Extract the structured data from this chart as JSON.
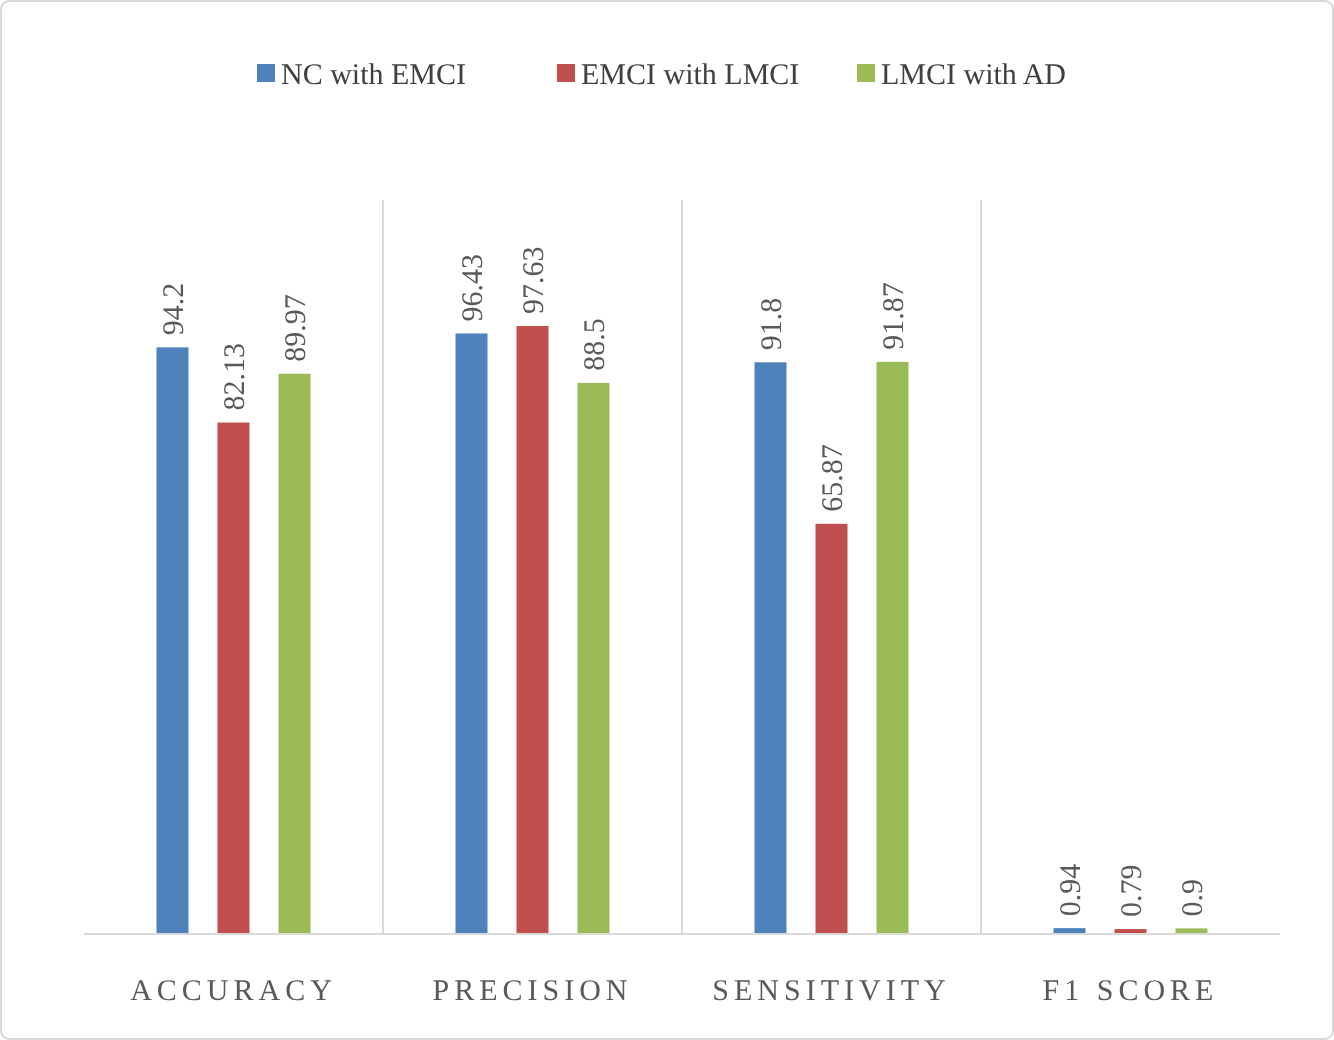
{
  "chart_data": {
    "type": "bar",
    "categories": [
      "ACCURACY",
      "PRECISION",
      "SENSITIVITY",
      "F1 SCORE"
    ],
    "series": [
      {
        "name": "NC with EMCI",
        "color": "#4f81bd",
        "values": [
          94.2,
          96.43,
          91.8,
          0.94
        ]
      },
      {
        "name": "EMCI with LMCI",
        "color": "#c0504d",
        "values": [
          82.13,
          97.63,
          65.87,
          0.79
        ]
      },
      {
        "name": "LMCI with AD",
        "color": "#9bbb59",
        "values": [
          89.97,
          88.5,
          91.87,
          0.9
        ]
      }
    ],
    "data_labels": true,
    "legend": "top",
    "grid": false
  }
}
